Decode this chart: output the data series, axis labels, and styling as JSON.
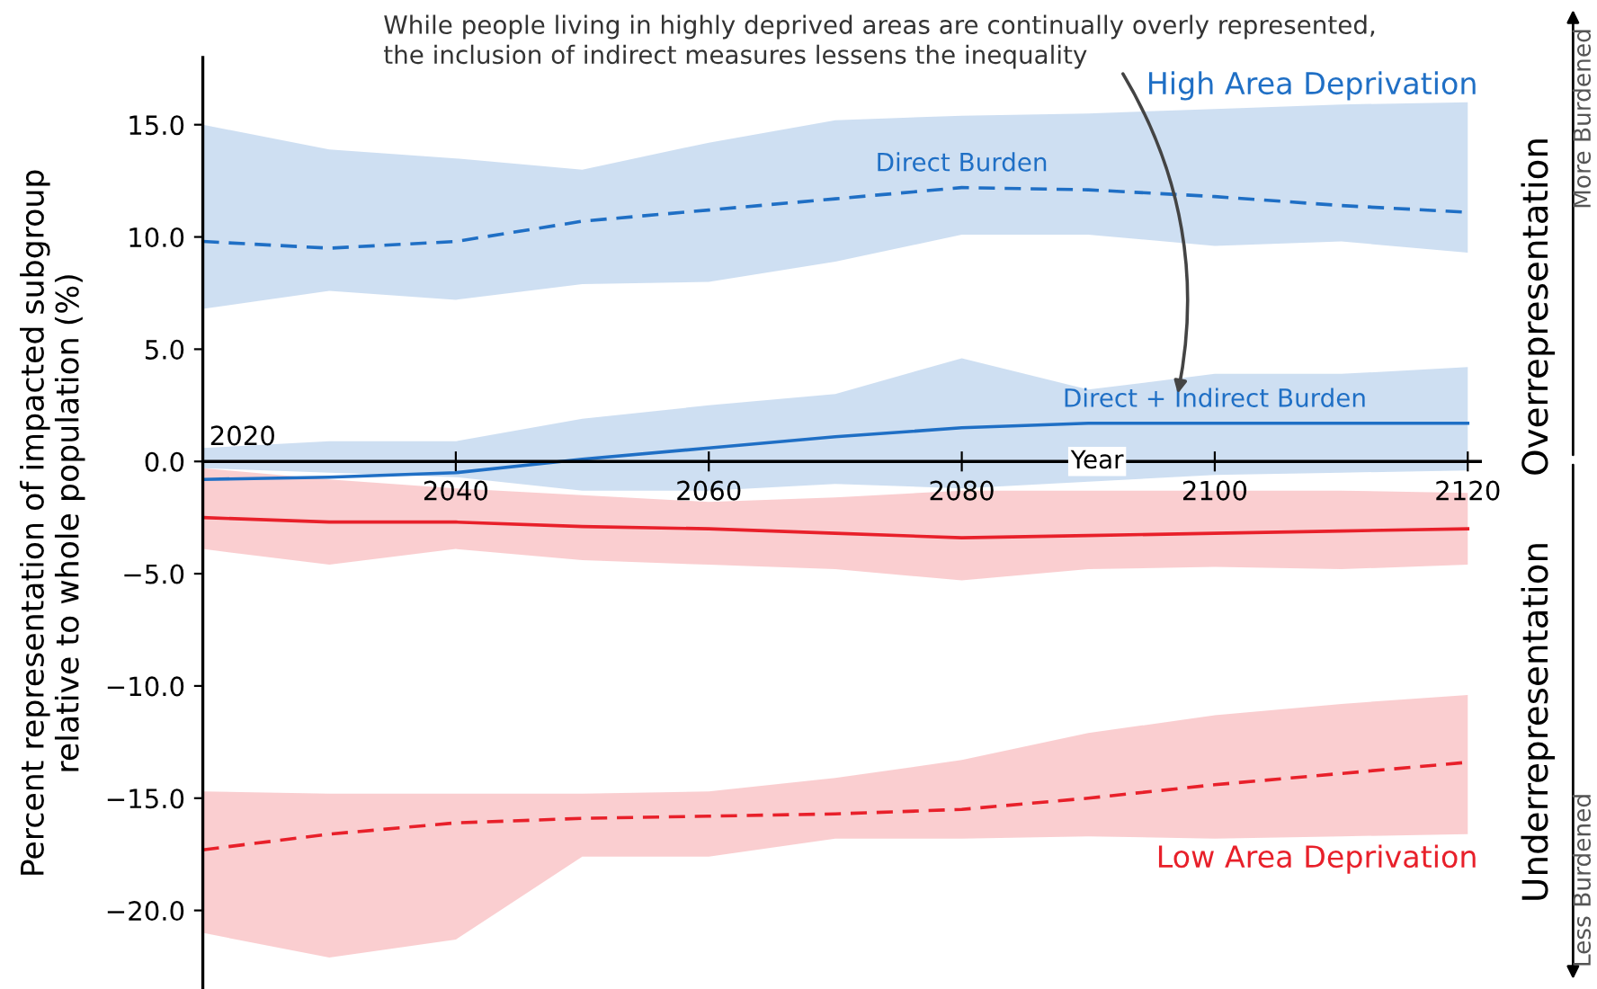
{
  "chart_data": {
    "type": "line",
    "ylabel": "Percent representation of impacted subgroup\nrelative to whole population (%)",
    "xlabel": "Year",
    "x": [
      2020,
      2030,
      2040,
      2050,
      2060,
      2070,
      2080,
      2090,
      2100,
      2110,
      2120
    ],
    "xlim": [
      2020,
      2121
    ],
    "xticks": [
      {
        "value": 2020,
        "label": null
      },
      2040,
      2060,
      2080,
      2100,
      2120
    ],
    "ylim": [
      -23.5,
      18
    ],
    "yticks": [
      {
        "value": -20,
        "label": "−20.0"
      },
      {
        "value": -15,
        "label": "−15.0"
      },
      {
        "value": -10,
        "label": "−10.0"
      },
      {
        "value": -5,
        "label": "−5.0"
      },
      {
        "value": 0,
        "label": "0.0"
      },
      {
        "value": 5,
        "label": "5.0"
      },
      {
        "value": 10,
        "label": "10.0"
      },
      {
        "value": 15,
        "label": "15.0"
      }
    ],
    "grid": false,
    "legend": false,
    "marker": "none",
    "series": [
      {
        "name": "Direct Burden",
        "color": "#1f6fc5",
        "line_style": "dashed",
        "values": [
          9.8,
          9.5,
          9.8,
          10.7,
          11.2,
          11.7,
          12.2,
          12.1,
          11.8,
          11.4,
          11.1
        ],
        "lower": [
          6.8,
          7.6,
          7.2,
          7.9,
          8.0,
          8.9,
          10.1,
          10.1,
          9.6,
          9.8,
          9.3
        ],
        "upper": [
          15.0,
          13.9,
          13.5,
          13.0,
          14.2,
          15.2,
          15.4,
          15.5,
          15.7,
          15.9,
          16.0
        ]
      },
      {
        "name": "Direct + Indirect Burden",
        "color": "#1f6fc5",
        "line_style": "solid",
        "values": [
          -0.8,
          -0.7,
          -0.5,
          0.1,
          0.6,
          1.1,
          1.5,
          1.7,
          1.7,
          1.7,
          1.7
        ],
        "lower": [
          -0.3,
          -0.5,
          -0.7,
          -1.3,
          -1.3,
          -1.0,
          -1.2,
          -0.9,
          -0.6,
          -0.5,
          -0.4
        ],
        "upper": [
          0.6,
          0.9,
          0.9,
          1.9,
          2.5,
          3.0,
          4.6,
          3.2,
          3.9,
          3.9,
          4.2
        ]
      },
      {
        "color": "#e8202a",
        "line_style": "solid",
        "values": [
          -2.5,
          -2.7,
          -2.7,
          -2.9,
          -3.0,
          -3.2,
          -3.4,
          -3.3,
          -3.2,
          -3.1,
          -3.0
        ],
        "lower": [
          -3.9,
          -4.6,
          -3.9,
          -4.4,
          -4.6,
          -4.8,
          -5.3,
          -4.8,
          -4.7,
          -4.8,
          -4.6
        ],
        "upper": [
          -0.3,
          -0.8,
          -1.2,
          -1.5,
          -1.8,
          -1.6,
          -1.3,
          -1.3,
          -1.3,
          -1.3,
          -1.4
        ]
      },
      {
        "color": "#e8202a",
        "line_style": "dashed",
        "values": [
          -17.3,
          -16.6,
          -16.1,
          -15.9,
          -15.8,
          -15.7,
          -15.5,
          -15.0,
          -14.4,
          -13.9,
          -13.4
        ],
        "lower": [
          -21.0,
          -22.1,
          -21.3,
          -17.6,
          -17.6,
          -16.8,
          -16.8,
          -16.7,
          -16.8,
          -16.7,
          -16.6
        ],
        "upper": [
          -14.7,
          -14.8,
          -14.8,
          -14.8,
          -14.7,
          -14.1,
          -13.3,
          -12.1,
          -11.3,
          -10.8,
          -10.4
        ]
      }
    ],
    "annotations": [
      "High Area Deprivation",
      "Low Area Deprivation",
      "While people living in highly deprived areas are continually overly represented,\nthe inclusion of indirect measures lessens the inequality",
      "Overrepresentation",
      "More Burdened",
      "Underrepresentation",
      "Less Burdened",
      "2020"
    ]
  }
}
